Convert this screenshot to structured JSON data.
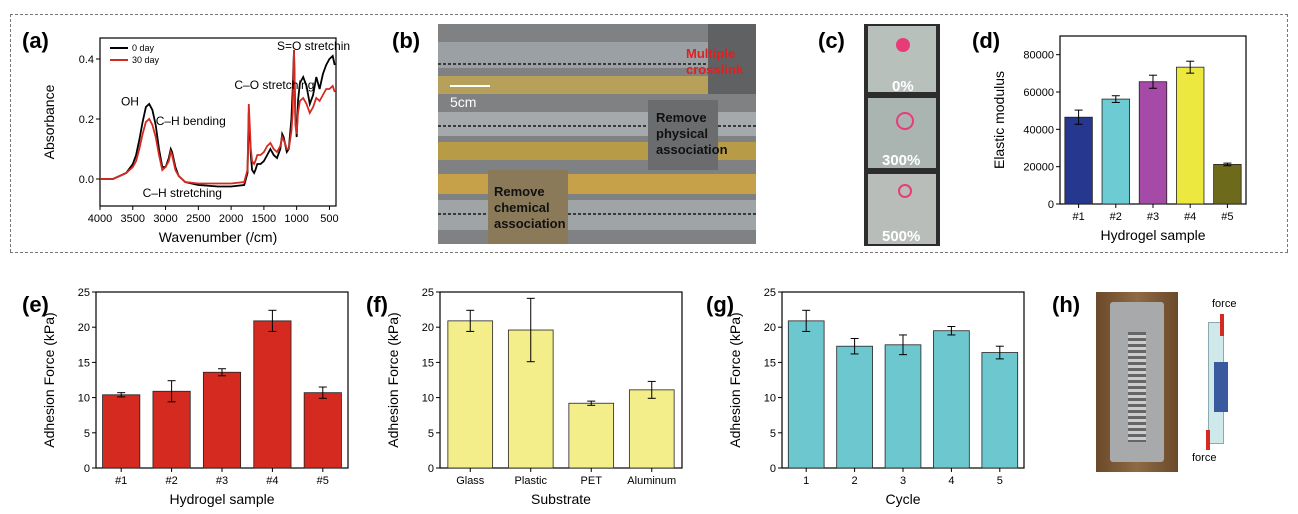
{
  "panel_labels": {
    "a": "(a)",
    "b": "(b)",
    "c": "(c)",
    "d": "(d)",
    "e": "(e)",
    "f": "(f)",
    "g": "(g)",
    "h": "(h)"
  },
  "colors": {
    "zero_day": "#000000",
    "thirty_day": "#d42a20",
    "d_bars": [
      "#25378f",
      "#6ccbd3",
      "#a54aa6",
      "#ece840",
      "#6e6a1c"
    ],
    "e_bar": "#d42a20",
    "f_bar": "#f3ee8a",
    "g_bar": "#6cc7cf"
  },
  "b_photo": {
    "scale": "5cm",
    "label1": "Multiple crosslink",
    "label2": "Remove physical association",
    "label3": "Remove chemical association"
  },
  "c_photo": {
    "labels": [
      "0%",
      "300%",
      "500%"
    ]
  },
  "h_photo": {
    "force_top": "force",
    "force_bottom": "force"
  },
  "chart_data": [
    {
      "id": "a",
      "type": "line",
      "xlabel": "Wavenumber (/cm)",
      "ylabel": "Absorbance",
      "xlim": [
        4000,
        400
      ],
      "ylim": [
        -0.09,
        0.47
      ],
      "xticks": [
        4000,
        3500,
        3000,
        2500,
        2000,
        1500,
        1000,
        500
      ],
      "yticks": [
        0.0,
        0.2,
        0.4
      ],
      "legend": "top-left",
      "series": [
        {
          "name": "0 day",
          "color": "#000000",
          "x": [
            4000,
            3800,
            3600,
            3500,
            3450,
            3400,
            3350,
            3300,
            3250,
            3200,
            3150,
            3100,
            3050,
            3000,
            2950,
            2920,
            2900,
            2880,
            2850,
            2800,
            2700,
            2500,
            2200,
            2000,
            1800,
            1750,
            1730,
            1700,
            1680,
            1650,
            1630,
            1600,
            1550,
            1500,
            1450,
            1400,
            1350,
            1300,
            1250,
            1220,
            1200,
            1180,
            1150,
            1120,
            1100,
            1080,
            1060,
            1040,
            1020,
            1000,
            980,
            950,
            900,
            850,
            800,
            750,
            700,
            650,
            600,
            550,
            500,
            450,
            420
          ],
          "y": [
            0.0,
            0.0,
            0.02,
            0.05,
            0.08,
            0.13,
            0.19,
            0.24,
            0.25,
            0.23,
            0.18,
            0.1,
            0.04,
            0.04,
            0.07,
            0.1,
            0.09,
            0.07,
            0.04,
            0.01,
            -0.01,
            -0.02,
            -0.025,
            -0.025,
            -0.02,
            0.02,
            0.22,
            0.08,
            0.03,
            0.02,
            0.03,
            0.05,
            0.05,
            0.06,
            0.08,
            0.1,
            0.08,
            0.07,
            0.1,
            0.15,
            0.14,
            0.12,
            0.09,
            0.1,
            0.15,
            0.2,
            0.3,
            0.43,
            0.2,
            0.14,
            0.26,
            0.32,
            0.34,
            0.31,
            0.25,
            0.28,
            0.34,
            0.3,
            0.35,
            0.38,
            0.4,
            0.41,
            0.38
          ]
        },
        {
          "name": "30 day",
          "color": "#d42a20",
          "x": [
            4000,
            3800,
            3600,
            3500,
            3450,
            3400,
            3350,
            3300,
            3250,
            3200,
            3150,
            3100,
            3050,
            3000,
            2950,
            2920,
            2900,
            2880,
            2850,
            2800,
            2700,
            2500,
            2200,
            2000,
            1800,
            1750,
            1730,
            1700,
            1680,
            1650,
            1630,
            1600,
            1550,
            1500,
            1450,
            1400,
            1350,
            1300,
            1250,
            1220,
            1200,
            1180,
            1150,
            1120,
            1100,
            1080,
            1060,
            1040,
            1020,
            1000,
            980,
            950,
            900,
            850,
            800,
            750,
            700,
            650,
            600,
            550,
            500,
            450,
            420
          ],
          "y": [
            0.0,
            0.0,
            0.02,
            0.04,
            0.06,
            0.1,
            0.15,
            0.19,
            0.2,
            0.18,
            0.14,
            0.08,
            0.03,
            0.04,
            0.06,
            0.09,
            0.08,
            0.06,
            0.03,
            0.01,
            -0.01,
            -0.015,
            -0.015,
            -0.015,
            -0.01,
            0.03,
            0.25,
            0.1,
            0.06,
            0.05,
            0.06,
            0.08,
            0.08,
            0.09,
            0.11,
            0.12,
            0.1,
            0.09,
            0.11,
            0.14,
            0.13,
            0.12,
            0.1,
            0.1,
            0.13,
            0.16,
            0.22,
            0.43,
            0.18,
            0.15,
            0.22,
            0.26,
            0.27,
            0.25,
            0.22,
            0.24,
            0.27,
            0.26,
            0.28,
            0.3,
            0.3,
            0.31,
            0.29
          ]
        }
      ],
      "annotations": [
        {
          "text": "S=O stretching",
          "x": 1300,
          "y": 0.43
        },
        {
          "text": "OH",
          "x": 3680,
          "y": 0.245
        },
        {
          "text": "C–O stretching",
          "x": 1950,
          "y": 0.3
        },
        {
          "text": "C–H bending",
          "x": 3150,
          "y": 0.18
        },
        {
          "text": "C–H stretching",
          "x": 3350,
          "y": -0.06
        }
      ]
    },
    {
      "id": "d",
      "type": "bar",
      "categories": [
        "#1",
        "#2",
        "#3",
        "#4",
        "#5"
      ],
      "values": [
        46500,
        56200,
        65500,
        73300,
        21200
      ],
      "errors": [
        3800,
        1800,
        3500,
        3200,
        700
      ],
      "xlabel": "Hydrogel sample",
      "ylabel": "Elastic modulus",
      "ylim": [
        0,
        90000
      ],
      "yticks": [
        0,
        20000,
        40000,
        60000,
        80000
      ]
    },
    {
      "id": "e",
      "type": "bar",
      "categories": [
        "#1",
        "#2",
        "#3",
        "#4",
        "#5"
      ],
      "values": [
        10.4,
        10.9,
        13.6,
        20.9,
        10.7
      ],
      "errors": [
        0.3,
        1.5,
        0.5,
        1.5,
        0.8
      ],
      "xlabel": "Hydrogel sample",
      "ylabel": "Adhesion Force (kPa)",
      "ylim": [
        0,
        25
      ],
      "yticks": [
        0,
        5,
        10,
        15,
        20,
        25
      ]
    },
    {
      "id": "f",
      "type": "bar",
      "categories": [
        "Glass",
        "Plastic",
        "PET",
        "Aluminum"
      ],
      "values": [
        20.9,
        19.6,
        9.2,
        11.1
      ],
      "errors": [
        1.5,
        4.5,
        0.3,
        1.2
      ],
      "xlabel": "Substrate",
      "ylabel": "Adhesion Force (kPa)",
      "ylim": [
        0,
        25
      ],
      "yticks": [
        0,
        5,
        10,
        15,
        20,
        25
      ]
    },
    {
      "id": "g",
      "type": "bar",
      "categories": [
        "1",
        "2",
        "3",
        "4",
        "5"
      ],
      "values": [
        20.9,
        17.3,
        17.5,
        19.5,
        16.4
      ],
      "errors": [
        1.5,
        1.1,
        1.4,
        0.6,
        0.9
      ],
      "xlabel": "Cycle",
      "ylabel": "Adhesion Force (kPa)",
      "ylim": [
        0,
        25
      ],
      "yticks": [
        0,
        5,
        10,
        15,
        20,
        25
      ]
    }
  ]
}
